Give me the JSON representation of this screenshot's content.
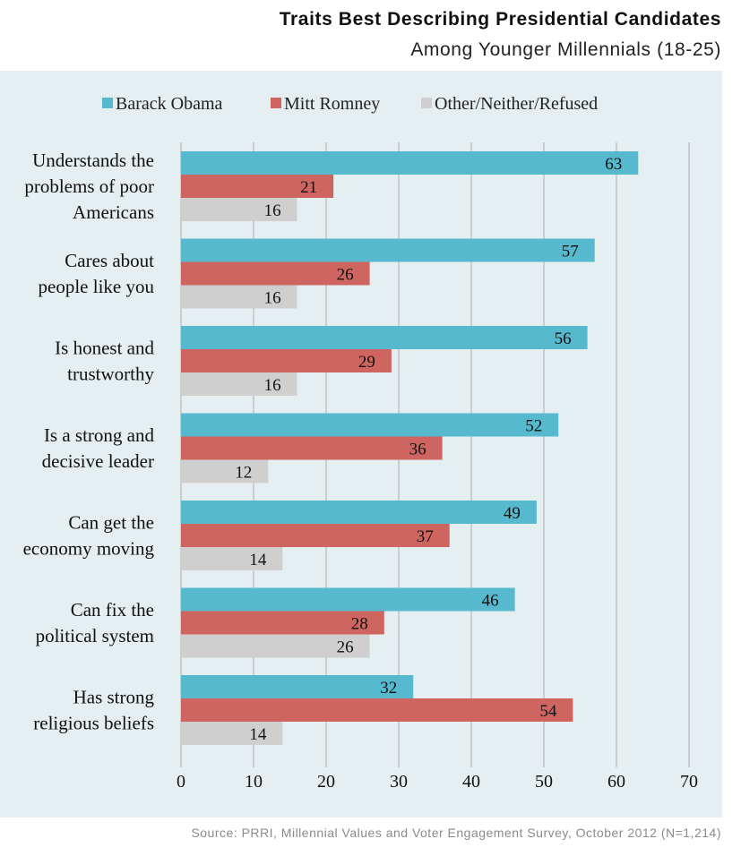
{
  "title": "Traits Best Describing Presidential Candidates",
  "subtitle": "Among Younger Millennials (18-25)",
  "source": "Source: PRRI, Millennial Values and Voter Engagement Survey, October 2012 (N=1,214)",
  "chart_data": {
    "type": "bar",
    "orientation": "horizontal",
    "categories": [
      [
        "Understands the",
        "problems of poor",
        "Americans"
      ],
      [
        "Cares about",
        "people like you"
      ],
      [
        "Is honest and",
        "trustworthy"
      ],
      [
        "Is a strong and",
        "decisive leader"
      ],
      [
        "Can get the",
        "economy moving"
      ],
      [
        "Can fix the",
        "political system"
      ],
      [
        "Has strong",
        "religious beliefs"
      ]
    ],
    "series": [
      {
        "name": "Barack Obama",
        "color": "#56b9ce",
        "values": [
          63,
          57,
          56,
          52,
          49,
          46,
          32
        ]
      },
      {
        "name": "Mitt Romney",
        "color": "#cf6560",
        "values": [
          21,
          26,
          29,
          36,
          37,
          28,
          54
        ]
      },
      {
        "name": "Other/Neither/Refused",
        "color": "#cfcfcf",
        "values": [
          16,
          16,
          16,
          12,
          14,
          26,
          14
        ]
      }
    ],
    "xlim": [
      0,
      70
    ],
    "xticks": [
      0,
      10,
      20,
      30,
      40,
      50,
      60,
      70
    ],
    "grid": true,
    "legend": "top",
    "data_labels": true
  }
}
